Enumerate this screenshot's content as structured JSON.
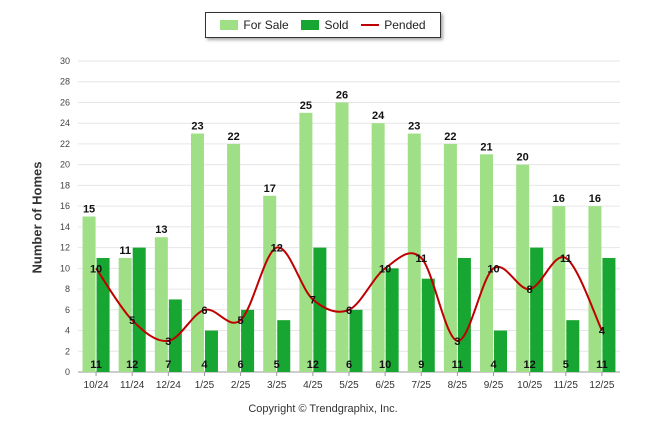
{
  "chart_data": {
    "type": "bar",
    "categories": [
      "10/24",
      "11/24",
      "12/24",
      "1/25",
      "2/25",
      "3/25",
      "4/25",
      "5/25",
      "6/25",
      "7/25",
      "8/25",
      "9/25",
      "10/25",
      "11/25",
      "12/25"
    ],
    "series": [
      {
        "name": "For Sale",
        "type": "bar",
        "color": "#9fdf86",
        "values": [
          15,
          11,
          13,
          23,
          22,
          17,
          25,
          26,
          24,
          23,
          22,
          21,
          20,
          16,
          16
        ]
      },
      {
        "name": "Sold",
        "type": "bar",
        "color": "#17a631",
        "values": [
          11,
          12,
          7,
          4,
          6,
          5,
          12,
          6,
          10,
          9,
          11,
          4,
          12,
          5,
          11
        ]
      },
      {
        "name": "Pended",
        "type": "line",
        "color": "#c00000",
        "values": [
          10,
          5,
          3,
          6,
          5,
          12,
          7,
          6,
          10,
          11,
          3,
          10,
          8,
          11,
          4
        ]
      }
    ],
    "ylabel": "Number of Homes",
    "ylim": [
      0,
      30
    ],
    "yticks": [
      0,
      2,
      4,
      6,
      8,
      10,
      12,
      14,
      16,
      18,
      20,
      22,
      24,
      26,
      28,
      30
    ],
    "grid": true,
    "legend_position": "top-center"
  },
  "footer": {
    "copyright": "Copyright © Trendgraphix, Inc."
  }
}
